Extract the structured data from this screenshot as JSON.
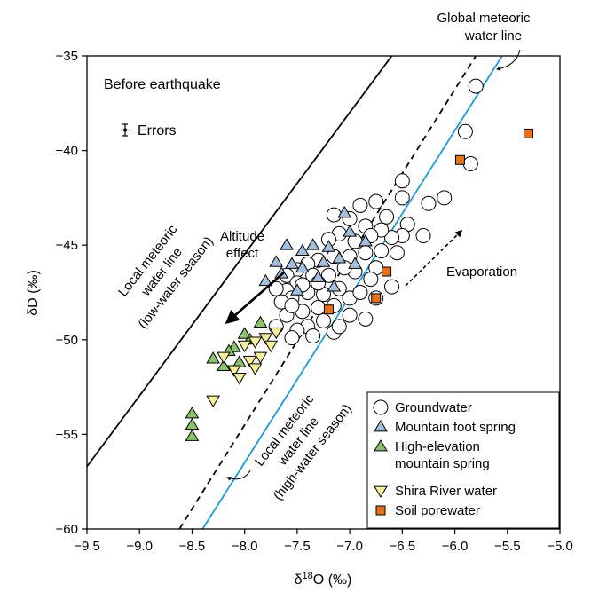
{
  "chart_data": {
    "type": "scatter",
    "xlabel": "δ18O (‰)",
    "xlabel_base": "δ",
    "xlabel_sup": "18",
    "xlabel_rest": "O (‰)",
    "ylabel": "δD (‰)",
    "xlim": [
      -9.5,
      -5.0
    ],
    "ylim": [
      -60,
      -35
    ],
    "x_ticks": [
      -9.5,
      -9.0,
      -8.5,
      -8.0,
      -7.5,
      -7.0,
      -6.5,
      -6.0,
      -5.5,
      -5.0
    ],
    "x_tick_labels": [
      "−9.5",
      "−9.0",
      "−8.5",
      "−8.0",
      "−7.5",
      "−7.0",
      "−6.5",
      "−6.0",
      "−5.5",
      "−5.0"
    ],
    "y_ticks": [
      -35,
      -40,
      -45,
      -50,
      -55,
      -60
    ],
    "y_tick_labels": [
      "−35",
      "−40",
      "−45",
      "−50",
      "−55",
      "−60"
    ],
    "grid": false,
    "legend_position": "bottom-right",
    "annotations": {
      "panel_title": "Before earthquake",
      "errors": "Errors",
      "gmwl_line1": "Global meteoric",
      "gmwl_line2": "water line",
      "altitude_line1": "Altitude",
      "altitude_line2": "effect",
      "evaporation": "Evaporation",
      "lmwl_low_line1": "Local meteoric",
      "lmwl_low_line2": "water line",
      "lmwl_low_line3": "(low-water season)",
      "lmwl_high_line1": "Local meteoric",
      "lmwl_high_line2": "water line",
      "lmwl_high_line3": "(high-water season)"
    },
    "lines": [
      {
        "id": "gmwl",
        "style": "solid",
        "color": "#1a9ad6",
        "x": [
          -8.4,
          -5.55
        ],
        "y": [
          -60,
          -35
        ]
      },
      {
        "id": "lmwl-high",
        "style": "dashed",
        "color": "#000000",
        "x": [
          -8.62,
          -5.8
        ],
        "y": [
          -60,
          -35
        ]
      },
      {
        "id": "lmwl-low",
        "style": "solid",
        "color": "#000000",
        "x": [
          -9.5,
          -6.6
        ],
        "y": [
          -56.7,
          -35
        ]
      }
    ],
    "series": [
      {
        "name": "Groundwater",
        "marker": "circle",
        "color": "#ffffff",
        "points": [
          [
            -5.8,
            -36.6
          ],
          [
            -5.9,
            -39.0
          ],
          [
            -5.85,
            -40.7
          ],
          [
            -6.1,
            -42.5
          ],
          [
            -6.25,
            -42.8
          ],
          [
            -6.5,
            -41.6
          ],
          [
            -6.5,
            -42.5
          ],
          [
            -6.75,
            -42.7
          ],
          [
            -6.9,
            -42.9
          ],
          [
            -6.45,
            -43.9
          ],
          [
            -6.65,
            -43.5
          ],
          [
            -6.85,
            -44.0
          ],
          [
            -7.0,
            -43.6
          ],
          [
            -7.15,
            -43.4
          ],
          [
            -6.3,
            -44.5
          ],
          [
            -6.5,
            -44.5
          ],
          [
            -6.6,
            -44.6
          ],
          [
            -6.7,
            -44.2
          ],
          [
            -6.8,
            -44.5
          ],
          [
            -6.95,
            -44.8
          ],
          [
            -7.1,
            -44.4
          ],
          [
            -7.2,
            -44.7
          ],
          [
            -6.55,
            -45.4
          ],
          [
            -6.7,
            -45.3
          ],
          [
            -6.85,
            -45.4
          ],
          [
            -7.0,
            -45.6
          ],
          [
            -7.15,
            -45.6
          ],
          [
            -7.3,
            -45.8
          ],
          [
            -7.4,
            -46.0
          ],
          [
            -7.5,
            -46.3
          ],
          [
            -7.6,
            -46.6
          ],
          [
            -6.75,
            -46.2
          ],
          [
            -6.95,
            -46.4
          ],
          [
            -7.05,
            -46.2
          ],
          [
            -7.2,
            -46.6
          ],
          [
            -7.35,
            -46.6
          ],
          [
            -7.5,
            -47.0
          ],
          [
            -7.6,
            -47.4
          ],
          [
            -7.7,
            -47.3
          ],
          [
            -7.1,
            -47.3
          ],
          [
            -7.25,
            -47.6
          ],
          [
            -7.4,
            -47.5
          ],
          [
            -7.55,
            -47.8
          ],
          [
            -7.65,
            -48.0
          ],
          [
            -7.0,
            -47.8
          ],
          [
            -7.15,
            -48.2
          ],
          [
            -7.3,
            -48.3
          ],
          [
            -7.45,
            -48.5
          ],
          [
            -7.6,
            -48.7
          ],
          [
            -7.25,
            -49.0
          ],
          [
            -7.4,
            -49.3
          ],
          [
            -7.5,
            -49.5
          ],
          [
            -7.55,
            -49.9
          ],
          [
            -7.15,
            -49.6
          ],
          [
            -7.35,
            -49.8
          ],
          [
            -6.85,
            -48.9
          ],
          [
            -7.0,
            -48.7
          ],
          [
            -7.1,
            -49.3
          ],
          [
            -7.7,
            -49.3
          ],
          [
            -7.45,
            -47.1
          ],
          [
            -6.9,
            -47.5
          ],
          [
            -6.8,
            -46.8
          ],
          [
            -7.3,
            -47.0
          ],
          [
            -6.6,
            -47.2
          ],
          [
            -6.75,
            -47.8
          ],
          [
            -7.55,
            -48.2
          ]
        ]
      },
      {
        "name": "Mountain foot spring",
        "marker": "triangle-up",
        "color": "#a4bfde",
        "points": [
          [
            -7.05,
            -43.3
          ],
          [
            -7.0,
            -44.3
          ],
          [
            -6.85,
            -44.8
          ],
          [
            -7.2,
            -45.1
          ],
          [
            -7.35,
            -45.0
          ],
          [
            -7.45,
            -45.3
          ],
          [
            -7.1,
            -45.7
          ],
          [
            -7.25,
            -45.9
          ],
          [
            -7.55,
            -46.0
          ],
          [
            -7.65,
            -46.5
          ],
          [
            -7.3,
            -46.7
          ],
          [
            -6.95,
            -46.0
          ],
          [
            -7.5,
            -47.4
          ],
          [
            -7.6,
            -45.0
          ],
          [
            -7.7,
            -45.9
          ],
          [
            -7.8,
            -46.9
          ],
          [
            -7.45,
            -46.2
          ],
          [
            -7.15,
            -47.2
          ]
        ]
      },
      {
        "name": "High-elevation mountain spring",
        "marker": "triangle-up",
        "color": "#8cc26c",
        "points": [
          [
            -7.85,
            -49.1
          ],
          [
            -8.0,
            -49.7
          ],
          [
            -8.1,
            -50.4
          ],
          [
            -8.05,
            -51.2
          ],
          [
            -8.2,
            -51.4
          ],
          [
            -8.3,
            -51.0
          ],
          [
            -8.5,
            -53.9
          ],
          [
            -8.5,
            -54.5
          ],
          [
            -8.5,
            -55.1
          ],
          [
            -7.95,
            -50.0
          ],
          [
            -8.15,
            -50.6
          ]
        ]
      },
      {
        "name": "Shira River water",
        "marker": "triangle-down",
        "color": "#f7f19d",
        "points": [
          [
            -7.7,
            -49.6
          ],
          [
            -7.8,
            -49.9
          ],
          [
            -7.9,
            -50.1
          ],
          [
            -8.0,
            -50.3
          ],
          [
            -7.85,
            -50.9
          ],
          [
            -7.95,
            -51.1
          ],
          [
            -8.1,
            -51.6
          ],
          [
            -7.9,
            -51.5
          ],
          [
            -8.05,
            -52.0
          ],
          [
            -8.3,
            -53.2
          ],
          [
            -8.2,
            -50.9
          ],
          [
            -7.75,
            -50.3
          ]
        ]
      },
      {
        "name": "Soil porewater",
        "marker": "square",
        "color": "#e8701a",
        "points": [
          [
            -5.3,
            -39.1
          ],
          [
            -5.95,
            -40.5
          ],
          [
            -6.65,
            -46.4
          ],
          [
            -6.75,
            -47.8
          ],
          [
            -7.2,
            -48.4
          ]
        ]
      }
    ]
  }
}
